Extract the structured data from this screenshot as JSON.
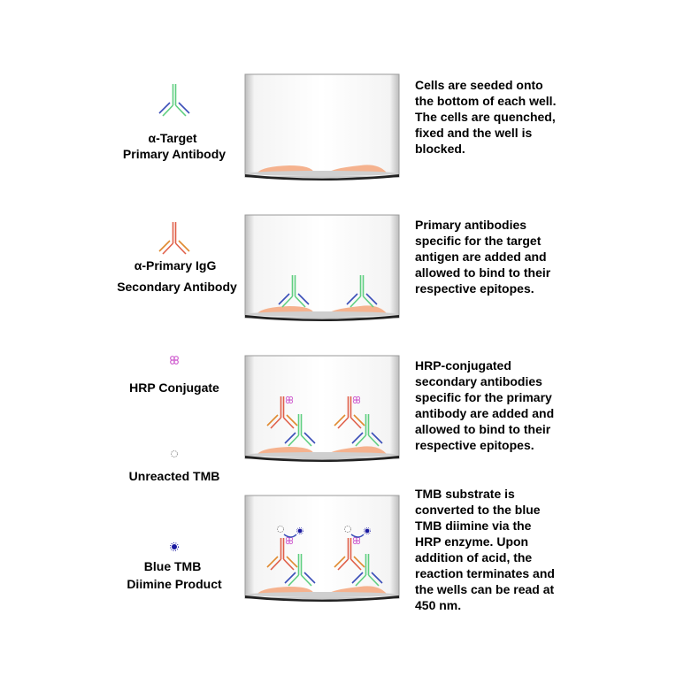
{
  "legend": [
    {
      "lines": [
        "α-Target",
        "Primary Antibody"
      ],
      "icon": "primary-antibody-icon"
    },
    {
      "lines": [
        "α-Primary IgG",
        "Secondary Antibody"
      ],
      "icon": "secondary-antibody-icon"
    },
    {
      "lines": [
        "HRP Conjugate"
      ],
      "icon": "hrp-conjugate-icon"
    },
    {
      "lines": [
        "Unreacted TMB"
      ],
      "icon": "unreacted-tmb-icon"
    },
    {
      "lines": [
        "Blue TMB",
        "Diimine Product"
      ],
      "icon": "blue-tmb-icon"
    }
  ],
  "steps": [
    {
      "lines": [
        "Cells are seeded onto",
        "the bottom of each well.",
        "The cells are quenched,",
        "fixed and the well is",
        "blocked."
      ]
    },
    {
      "lines": [
        "Primary antibodies",
        "specific for the target",
        "antigen are added and",
        "allowed to bind to their",
        "respective epitopes."
      ]
    },
    {
      "lines": [
        "HRP-conjugated",
        "secondary antibodies",
        "specific for the primary",
        "antibody are added and",
        "allowed to bind to their",
        "respective epitopes."
      ]
    },
    {
      "lines": [
        "TMB substrate is",
        "converted to the blue",
        "TMB diimine via the",
        "HRP enzyme. Upon",
        "addition of acid, the",
        "reaction terminates and",
        "the wells can be read at",
        "450 nm."
      ]
    }
  ],
  "colors": {
    "primary_antibody": "#5fcf80",
    "primary_light_chain": "#3b4fb8",
    "secondary_antibody": "#e0604a",
    "secondary_light_chain": "#e08a30",
    "hrp": "#d060d0",
    "blue_tmb": "#1a1aa0",
    "cells": "#f5b28e"
  }
}
